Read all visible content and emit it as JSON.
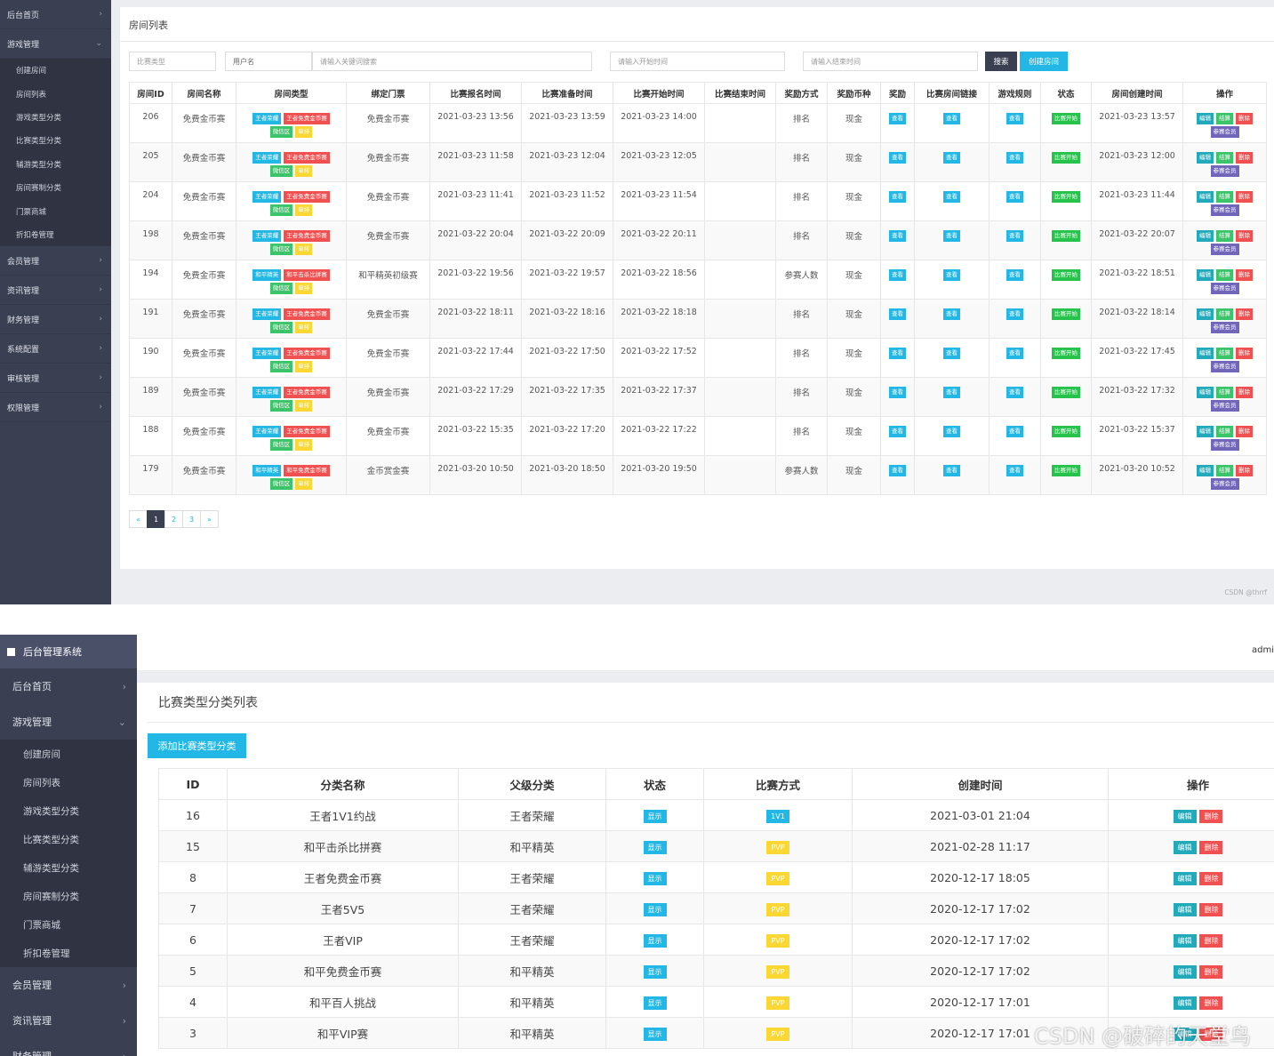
{
  "panel1": {
    "sidebar": [
      {
        "label": "后台首页",
        "open": false
      },
      {
        "label": "游戏管理",
        "open": true,
        "children": [
          "创建房间",
          "房间列表",
          "游戏类型分类",
          "比赛类型分类",
          "辅游类型分类",
          "房间赛制分类",
          "门票商城",
          "折扣卷管理"
        ]
      },
      {
        "label": "会员管理",
        "open": false
      },
      {
        "label": "资讯管理",
        "open": false
      },
      {
        "label": "财务管理",
        "open": false
      },
      {
        "label": "系统配置",
        "open": false
      },
      {
        "label": "审核管理",
        "open": false
      },
      {
        "label": "权限管理",
        "open": false
      }
    ],
    "page_title": "房间列表",
    "filters": {
      "match_type": "比赛类型",
      "username": "用户名",
      "keyword_placeholder": "请输入关键词搜索",
      "start_placeholder": "请输入开始时间",
      "end_placeholder": "请输入结束时间",
      "search_label": "搜索",
      "create_label": "创建房间"
    },
    "columns": [
      "房间ID",
      "房间名称",
      "房间类型",
      "绑定门票",
      "比赛报名时间",
      "比赛准备时间",
      "比赛开始时间",
      "比赛结束时间",
      "奖励方式",
      "奖励币种",
      "奖励",
      "比赛房间链接",
      "游戏规则",
      "状态",
      "房间创建时间",
      "操作"
    ],
    "rows": [
      {
        "id": "206",
        "name": "免费金币赛",
        "type_tags": [
          "王者荣耀",
          "王者免费金币赛",
          "微信区",
          "单排"
        ],
        "ticket": "免费金币赛",
        "signup": "2021-03-23 13:56",
        "prepare": "2021-03-23 13:59",
        "start": "2021-03-23 14:00",
        "end": "",
        "reward_mode": "排名",
        "currency": "现金",
        "created": "2021-03-23 13:57"
      },
      {
        "id": "205",
        "name": "免费金币赛",
        "type_tags": [
          "王者荣耀",
          "王者免费金币赛",
          "微信区",
          "单排"
        ],
        "ticket": "免费金币赛",
        "signup": "2021-03-23 11:58",
        "prepare": "2021-03-23 12:04",
        "start": "2021-03-23 12:05",
        "end": "",
        "reward_mode": "排名",
        "currency": "现金",
        "created": "2021-03-23 12:00"
      },
      {
        "id": "204",
        "name": "免费金币赛",
        "type_tags": [
          "王者荣耀",
          "王者免费金币赛",
          "微信区",
          "单排"
        ],
        "ticket": "免费金币赛",
        "signup": "2021-03-23 11:41",
        "prepare": "2021-03-23 11:52",
        "start": "2021-03-23 11:54",
        "end": "",
        "reward_mode": "排名",
        "currency": "现金",
        "created": "2021-03-23 11:44"
      },
      {
        "id": "198",
        "name": "免费金币赛",
        "type_tags": [
          "王者荣耀",
          "王者免费金币赛",
          "微信区",
          "单排"
        ],
        "ticket": "免费金币赛",
        "signup": "2021-03-22 20:04",
        "prepare": "2021-03-22 20:09",
        "start": "2021-03-22 20:11",
        "end": "",
        "reward_mode": "排名",
        "currency": "现金",
        "created": "2021-03-22 20:07"
      },
      {
        "id": "194",
        "name": "免费金币赛",
        "type_tags": [
          "和平精英",
          "和平击杀比拼赛",
          "微信区",
          "单排"
        ],
        "ticket": "和平精英初级赛",
        "signup": "2021-03-22 19:56",
        "prepare": "2021-03-22 19:57",
        "start": "2021-03-22 18:56",
        "end": "",
        "reward_mode": "参赛人数",
        "currency": "现金",
        "created": "2021-03-22 18:51"
      },
      {
        "id": "191",
        "name": "免费金币赛",
        "type_tags": [
          "王者荣耀",
          "王者免费金币赛",
          "微信区",
          "单排"
        ],
        "ticket": "免费金币赛",
        "signup": "2021-03-22 18:11",
        "prepare": "2021-03-22 18:16",
        "start": "2021-03-22 18:18",
        "end": "",
        "reward_mode": "排名",
        "currency": "现金",
        "created": "2021-03-22 18:14"
      },
      {
        "id": "190",
        "name": "免费金币赛",
        "type_tags": [
          "王者荣耀",
          "王者免费金币赛",
          "微信区",
          "单排"
        ],
        "ticket": "免费金币赛",
        "signup": "2021-03-22 17:44",
        "prepare": "2021-03-22 17:50",
        "start": "2021-03-22 17:52",
        "end": "",
        "reward_mode": "排名",
        "currency": "现金",
        "created": "2021-03-22 17:45"
      },
      {
        "id": "189",
        "name": "免费金币赛",
        "type_tags": [
          "王者荣耀",
          "王者免费金币赛",
          "微信区",
          "单排"
        ],
        "ticket": "免费金币赛",
        "signup": "2021-03-22 17:29",
        "prepare": "2021-03-22 17:35",
        "start": "2021-03-22 17:37",
        "end": "",
        "reward_mode": "排名",
        "currency": "现金",
        "created": "2021-03-22 17:32"
      },
      {
        "id": "188",
        "name": "免费金币赛",
        "type_tags": [
          "王者荣耀",
          "王者免费金币赛",
          "微信区",
          "单排"
        ],
        "ticket": "免费金币赛",
        "signup": "2021-03-22 15:35",
        "prepare": "2021-03-22 17:20",
        "start": "2021-03-22 17:22",
        "end": "",
        "reward_mode": "排名",
        "currency": "现金",
        "created": "2021-03-22 15:37"
      },
      {
        "id": "179",
        "name": "免费金币赛",
        "type_tags": [
          "和平精英",
          "和平免费金币赛",
          "微信区",
          "单排"
        ],
        "ticket": "金币赏金赛",
        "signup": "2021-03-20 10:50",
        "prepare": "2021-03-20 18:50",
        "start": "2021-03-20 19:50",
        "end": "",
        "reward_mode": "参赛人数",
        "currency": "现金",
        "created": "2021-03-20 10:52"
      }
    ],
    "view_label": "查看",
    "status_label": "比赛开始",
    "action_labels": {
      "edit": "编辑",
      "settle": "结算",
      "delete": "删除",
      "members": "参赛会员"
    },
    "pager": [
      "«",
      "1",
      "2",
      "3",
      "»"
    ],
    "watermark": "CSDN @thrrf"
  },
  "panel2": {
    "brand": "后台管理系统",
    "admin": "admi",
    "sidebar": [
      {
        "label": "后台首页",
        "open": false
      },
      {
        "label": "游戏管理",
        "open": true,
        "children": [
          "创建房间",
          "房间列表",
          "游戏类型分类",
          "比赛类型分类",
          "辅游类型分类",
          "房间赛制分类",
          "门票商城",
          "折扣卷管理"
        ]
      },
      {
        "label": "会员管理",
        "open": false
      },
      {
        "label": "资讯管理",
        "open": false
      },
      {
        "label": "财务管理",
        "open": false
      }
    ],
    "page_title": "比赛类型分类列表",
    "add_label": "添加比赛类型分类",
    "columns": [
      "ID",
      "分类名称",
      "父级分类",
      "状态",
      "比赛方式",
      "创建时间",
      "操作"
    ],
    "rows": [
      {
        "id": "16",
        "name": "王者1V1约战",
        "parent": "王者荣耀",
        "status": "显示",
        "mode": "1V1",
        "created": "2021-03-01 21:04"
      },
      {
        "id": "15",
        "name": "和平击杀比拼赛",
        "parent": "和平精英",
        "status": "显示",
        "mode": "PVP",
        "created": "2021-02-28 11:17"
      },
      {
        "id": "8",
        "name": "王者免费金币赛",
        "parent": "王者荣耀",
        "status": "显示",
        "mode": "PVP",
        "created": "2020-12-17 18:05"
      },
      {
        "id": "7",
        "name": "王者5V5",
        "parent": "王者荣耀",
        "status": "显示",
        "mode": "PVP",
        "created": "2020-12-17 17:02"
      },
      {
        "id": "6",
        "name": "王者VIP",
        "parent": "王者荣耀",
        "status": "显示",
        "mode": "PVP",
        "created": "2020-12-17 17:02"
      },
      {
        "id": "5",
        "name": "和平免费金币赛",
        "parent": "和平精英",
        "status": "显示",
        "mode": "PVP",
        "created": "2020-12-17 17:02"
      },
      {
        "id": "4",
        "name": "和平百人挑战",
        "parent": "和平精英",
        "status": "显示",
        "mode": "PVP",
        "created": "2020-12-17 17:01"
      },
      {
        "id": "3",
        "name": "和平VIP赛",
        "parent": "和平精英",
        "status": "显示",
        "mode": "PVP",
        "created": "2020-12-17 17:01"
      }
    ],
    "action_labels": {
      "edit": "编辑",
      "delete": "删除"
    },
    "watermark": "CSDN @破碎的天堂鸟"
  }
}
